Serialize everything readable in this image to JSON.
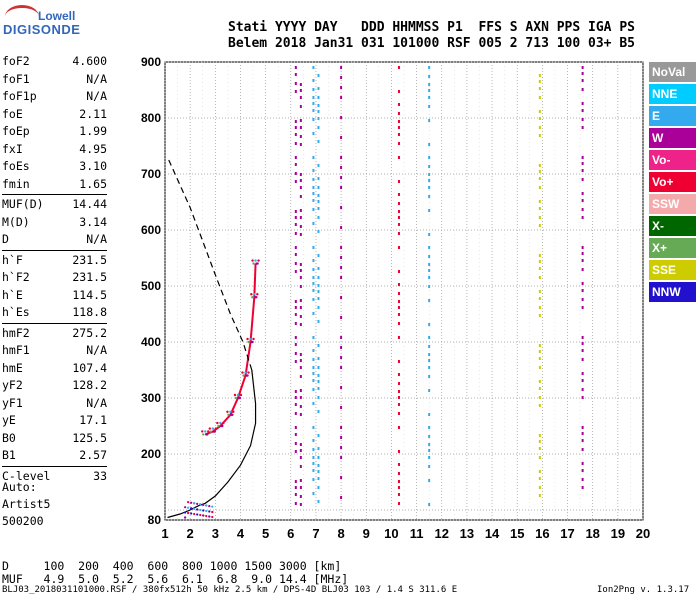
{
  "logo": {
    "line1": "Lowell",
    "line2": "DIGISONDE"
  },
  "header": {
    "row1": "Stati YYYY DAY   DDD HHMMSS P1  FFS S AXN PPS IGA PS",
    "row2": "Belem 2018 Jan31 031 101000 RSF 005 2 713 100 03+ B5"
  },
  "params": [
    {
      "k": "foF2",
      "v": "4.600"
    },
    {
      "k": "foF1",
      "v": "N/A"
    },
    {
      "k": "foF1p",
      "v": "N/A"
    },
    {
      "k": "foE",
      "v": "2.11"
    },
    {
      "k": "foEp",
      "v": "1.99"
    },
    {
      "k": "fxI",
      "v": "4.95"
    },
    {
      "k": "foEs",
      "v": "3.10"
    },
    {
      "k": "fmin",
      "v": "1.65"
    },
    {
      "k": "MUF(D)",
      "v": "14.44",
      "sep": true
    },
    {
      "k": "M(D)",
      "v": "3.14"
    },
    {
      "k": "D",
      "v": "N/A"
    },
    {
      "k": "h`F",
      "v": "231.5",
      "sep": true
    },
    {
      "k": "h`F2",
      "v": "231.5"
    },
    {
      "k": "h`E",
      "v": "114.5"
    },
    {
      "k": "h`Es",
      "v": "118.8"
    },
    {
      "k": "hmF2",
      "v": "275.2",
      "sep": true
    },
    {
      "k": "hmF1",
      "v": "N/A"
    },
    {
      "k": "hmE",
      "v": "107.4"
    },
    {
      "k": "yF2",
      "v": "128.2"
    },
    {
      "k": "yF1",
      "v": "N/A"
    },
    {
      "k": "yE",
      "v": "17.1"
    },
    {
      "k": "B0",
      "v": "125.5"
    },
    {
      "k": "B1",
      "v": "2.57"
    },
    {
      "k": "C-level",
      "v": "33",
      "sep": true
    }
  ],
  "auto": {
    "l1": "Auto:",
    "l2": "Artist5",
    "l3": "500200"
  },
  "dmuf": {
    "d_row": "D     100  200  400  600  800 1000 1500 3000 [km]",
    "muf_row": "MUF   4.9  5.0  5.2  5.6  6.1  6.8  9.0 14.4 [MHz]"
  },
  "footer": {
    "left": "BLJ03_2018031101000.RSF / 380fx512h 50 kHz 2.5 km / DPS-4D BLJ03 103 / 1.4 S 311.6 E",
    "right": "Ion2Png v. 1.3.17"
  },
  "legend": [
    {
      "label": "NoVal",
      "color": "#999999"
    },
    {
      "label": "NNE",
      "color": "#00ccff"
    },
    {
      "label": "E",
      "color": "#33aaee"
    },
    {
      "label": "W",
      "color": "#aa0099"
    },
    {
      "label": "Vo-",
      "color": "#ee2288"
    },
    {
      "label": "Vo+",
      "color": "#ee0033"
    },
    {
      "label": "SSW",
      "color": "#f4aaaa"
    },
    {
      "label": "X-",
      "color": "#006600"
    },
    {
      "label": "X+",
      "color": "#66aa55"
    },
    {
      "label": "SSE",
      "color": "#cccc00"
    },
    {
      "label": "NNW",
      "color": "#2211cc"
    }
  ],
  "chart_data": {
    "type": "scatter",
    "xlabel": "",
    "ylabel": "",
    "xlim": [
      1,
      20
    ],
    "ylim": [
      80,
      900
    ],
    "x_ticks": [
      1,
      2,
      3,
      4,
      5,
      6,
      7,
      8,
      9,
      10,
      11,
      12,
      13,
      14,
      15,
      16,
      17,
      18,
      19,
      20
    ],
    "y_ticks": [
      80,
      100,
      200,
      300,
      400,
      500,
      600,
      700,
      800,
      900
    ],
    "y_tick_labels": [
      "80",
      "",
      "200",
      "300",
      "400",
      "500",
      "600",
      "700",
      "800",
      "900"
    ],
    "grid": true,
    "traces": [
      {
        "name": "O-trace F2",
        "color": "#ee0033",
        "x": [
          2.6,
          2.9,
          3.2,
          3.6,
          3.9,
          4.2,
          4.4,
          4.55,
          4.6
        ],
        "y": [
          235,
          240,
          250,
          270,
          300,
          340,
          400,
          480,
          540
        ]
      },
      {
        "name": "profile",
        "color": "#000000",
        "x": [
          1.1,
          1.6,
          2.0,
          2.3,
          2.6,
          3.0,
          3.5,
          4.0,
          4.4,
          4.6,
          4.6,
          4.45,
          4.1,
          3.6,
          3.0,
          2.5,
          2.0,
          1.6,
          1.3,
          1.1
        ],
        "y": [
          85,
          92,
          100,
          107,
          112,
          125,
          150,
          180,
          215,
          255,
          290,
          350,
          400,
          450,
          520,
          580,
          640,
          680,
          710,
          730
        ],
        "dash_from": 11
      }
    ],
    "vertical_bands": [
      {
        "x": 6.2,
        "color": "#aa0099"
      },
      {
        "x": 6.4,
        "color": "#aa0099"
      },
      {
        "x": 6.9,
        "color": "#33aaee"
      },
      {
        "x": 7.1,
        "color": "#33aaee"
      },
      {
        "x": 8.0,
        "color": "#aa0099"
      },
      {
        "x": 10.3,
        "color": "#ee0033"
      },
      {
        "x": 11.5,
        "color": "#33aaee"
      },
      {
        "x": 17.6,
        "color": "#aa0099"
      },
      {
        "x": 15.9,
        "color": "#cccc00"
      }
    ]
  }
}
